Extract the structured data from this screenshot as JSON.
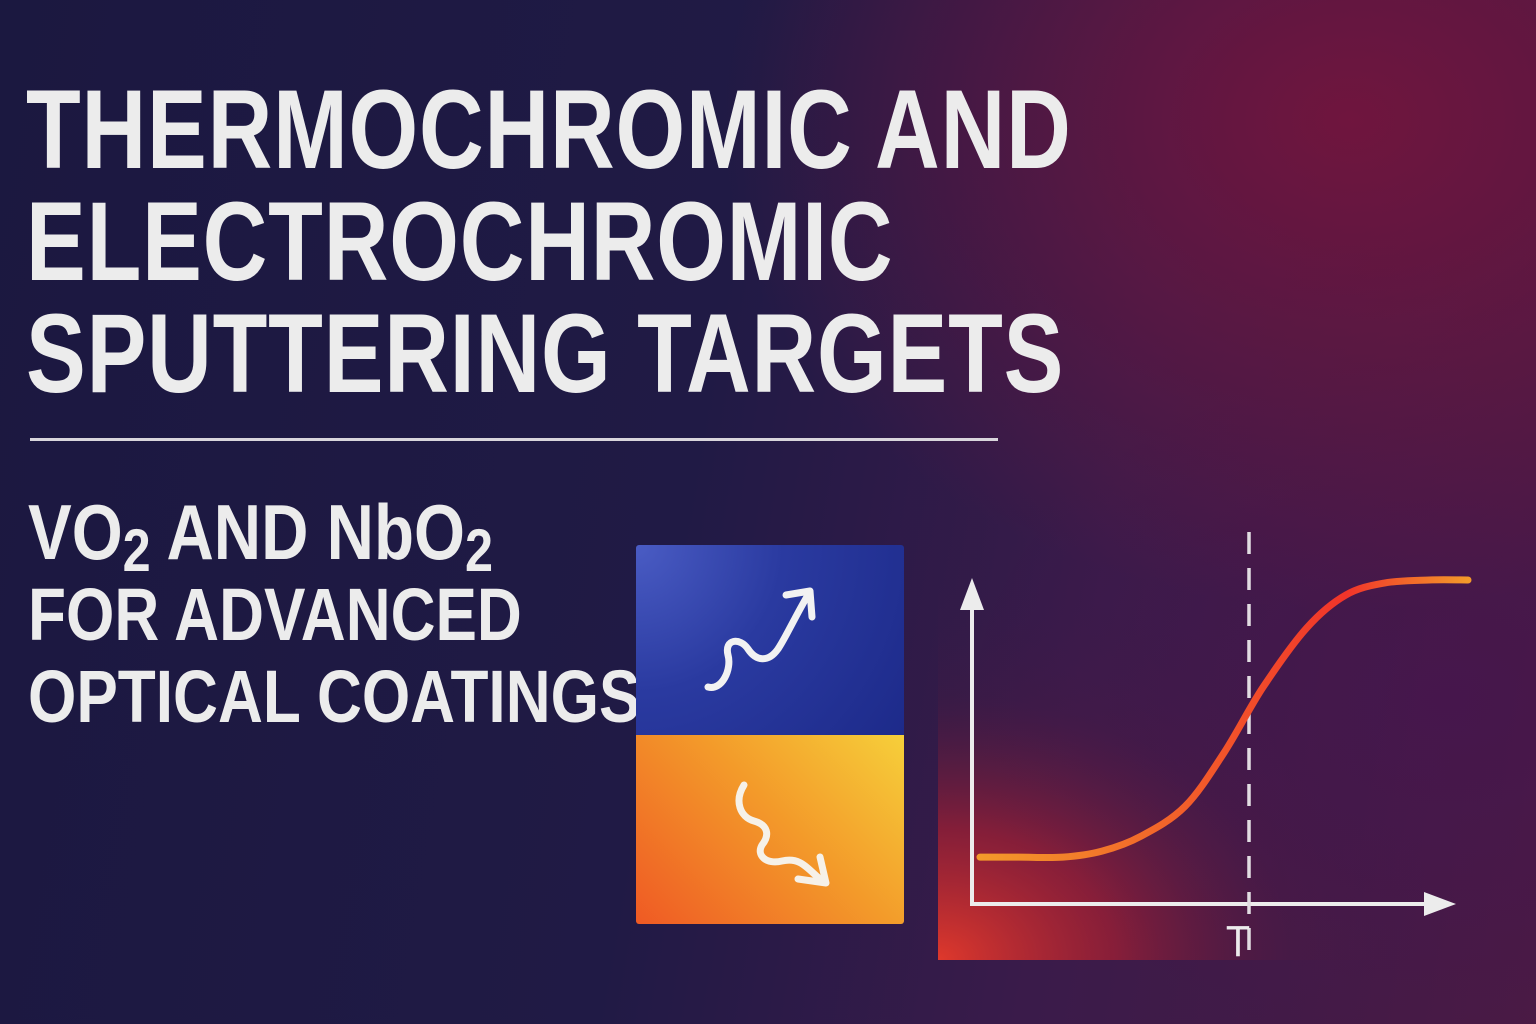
{
  "title": {
    "line1": "THERMOCHROMIC AND",
    "line2": "ELECTROCHROMIC",
    "line3": "SPUTTERING TARGETS"
  },
  "subtitle": {
    "vo": "VO",
    "vo_sub": "2",
    "and": " AND ",
    "nbo": "NbO",
    "nbo_sub": "2",
    "line2": "FOR ADVANCED",
    "line3": "OPTICAL COATINGS"
  },
  "panels": {
    "top_icon": "wavy-arrow-up-right-icon",
    "bottom_icon": "wavy-arrow-down-right-icon",
    "top_color": "#2a3aa0",
    "bottom_color": "#f39a2a"
  },
  "chart_data": {
    "type": "line",
    "title": "",
    "xlabel": "",
    "ylabel": "",
    "annotations": [
      "T"
    ],
    "series": [
      {
        "values": [
          0.05,
          0.05,
          0.05,
          0.07,
          0.12,
          0.22,
          0.4,
          0.62,
          0.82,
          0.93,
          0.97,
          0.98,
          0.98
        ]
      }
    ],
    "x": [
      0,
      0.08,
      0.17,
      0.25,
      0.33,
      0.42,
      0.5,
      0.58,
      0.67,
      0.75,
      0.83,
      0.92,
      1.0
    ],
    "transition_marker": "dashed-vertical-line",
    "grid": false,
    "colors": {
      "curve_start": "#f39a2a",
      "curve_end": "#f0342a",
      "axes": "#ececec"
    }
  }
}
